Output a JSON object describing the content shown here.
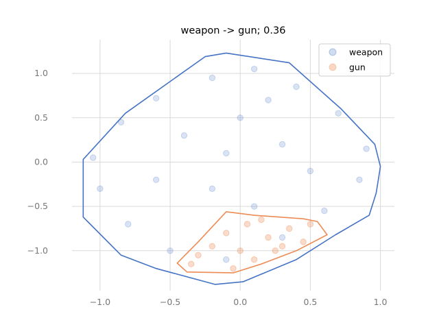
{
  "chart_data": {
    "type": "scatter",
    "title": "weapon -> gun; 0.36",
    "xlabel": "",
    "ylabel": "",
    "xlim": [
      -1.2,
      1.1
    ],
    "ylim": [
      -1.45,
      1.38
    ],
    "xticks": [
      -1.0,
      -0.5,
      0.0,
      0.5,
      1.0
    ],
    "xtick_labels": [
      "−1.0",
      "−0.5",
      "0.0",
      "0.5",
      "1.0"
    ],
    "yticks": [
      -1.0,
      -0.5,
      0.0,
      0.5,
      1.0
    ],
    "ytick_labels": [
      "−1.0",
      "−0.5",
      "0.0",
      "0.5",
      "1.0"
    ],
    "grid": true,
    "legend_position": "top-right",
    "series": [
      {
        "name": "weapon",
        "color": "#4472c4",
        "marker_alpha": 0.2,
        "hull": [
          [
            -0.1,
            1.23
          ],
          [
            0.35,
            1.12
          ],
          [
            0.72,
            0.6
          ],
          [
            0.96,
            0.2
          ],
          [
            1.0,
            -0.05
          ],
          [
            0.97,
            -0.35
          ],
          [
            0.92,
            -0.6
          ],
          [
            0.68,
            -0.82
          ],
          [
            0.4,
            -1.1
          ],
          [
            0.02,
            -1.35
          ],
          [
            -0.18,
            -1.38
          ],
          [
            -0.6,
            -1.2
          ],
          [
            -0.85,
            -1.05
          ],
          [
            -1.12,
            -0.62
          ],
          [
            -1.12,
            0.03
          ],
          [
            -0.82,
            0.55
          ],
          [
            -0.25,
            1.19
          ]
        ],
        "points": [
          [
            -0.85,
            0.45
          ],
          [
            -0.6,
            0.72
          ],
          [
            -0.2,
            0.95
          ],
          [
            0.1,
            1.05
          ],
          [
            0.4,
            0.85
          ],
          [
            0.7,
            0.55
          ],
          [
            0.9,
            0.15
          ],
          [
            0.85,
            -0.2
          ],
          [
            0.6,
            -0.55
          ],
          [
            0.3,
            -0.85
          ],
          [
            -0.1,
            -1.1
          ],
          [
            -0.5,
            -1.0
          ],
          [
            -0.8,
            -0.7
          ],
          [
            -1.0,
            -0.3
          ],
          [
            -1.05,
            0.05
          ],
          [
            -0.4,
            0.3
          ],
          [
            0.0,
            0.5
          ],
          [
            0.3,
            0.2
          ],
          [
            -0.2,
            -0.3
          ],
          [
            0.1,
            -0.5
          ],
          [
            0.5,
            -0.1
          ],
          [
            -0.6,
            -0.2
          ],
          [
            0.2,
            0.7
          ],
          [
            -0.1,
            0.1
          ]
        ]
      },
      {
        "name": "gun",
        "color": "#ed8b55",
        "marker_alpha": 0.3,
        "hull": [
          [
            -0.1,
            -0.56
          ],
          [
            0.1,
            -0.6
          ],
          [
            0.45,
            -0.64
          ],
          [
            0.55,
            -0.67
          ],
          [
            0.62,
            -0.82
          ],
          [
            0.4,
            -1.0
          ],
          [
            0.15,
            -1.15
          ],
          [
            -0.05,
            -1.25
          ],
          [
            -0.38,
            -1.24
          ],
          [
            -0.45,
            -1.14
          ],
          [
            -0.3,
            -0.9
          ]
        ],
        "points": [
          [
            -0.3,
            -1.05
          ],
          [
            -0.1,
            -0.8
          ],
          [
            0.05,
            -0.7
          ],
          [
            0.2,
            -0.85
          ],
          [
            0.35,
            -0.75
          ],
          [
            0.45,
            -0.9
          ],
          [
            0.0,
            -1.0
          ],
          [
            -0.2,
            -0.95
          ],
          [
            0.1,
            -1.1
          ],
          [
            -0.35,
            -1.15
          ],
          [
            0.25,
            -1.0
          ],
          [
            0.5,
            -0.7
          ],
          [
            -0.05,
            -1.2
          ],
          [
            0.15,
            -0.65
          ],
          [
            0.3,
            -0.95
          ]
        ]
      }
    ]
  }
}
